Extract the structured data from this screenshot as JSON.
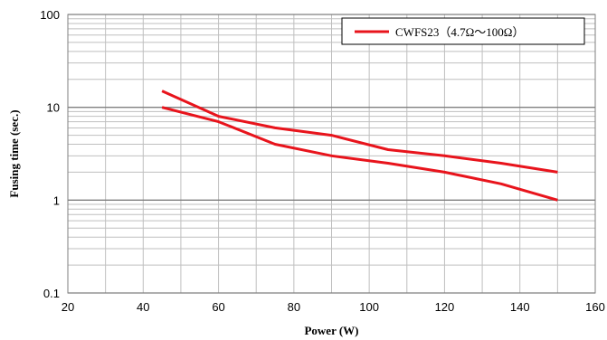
{
  "chart_data": {
    "type": "line",
    "xlabel": "Power (W)",
    "ylabel": "Fusing time (sec.)",
    "xlim": [
      20,
      160
    ],
    "ylim": [
      0.1,
      100
    ],
    "yscale": "log",
    "grid": true,
    "legend_position": "top-right",
    "x_ticks": [
      20,
      40,
      60,
      80,
      100,
      120,
      140,
      160
    ],
    "x_tick_labels": [
      "20",
      "40",
      "60",
      "80",
      "100",
      "120",
      "140",
      "160"
    ],
    "y_ticks": [
      0.1,
      1,
      10,
      100
    ],
    "y_tick_labels": [
      "0.1",
      "1",
      "10",
      "100"
    ],
    "legend": [
      {
        "label": "CWFS23（4.7Ω〜100Ω）",
        "color": "#e8141c"
      }
    ],
    "series": [
      {
        "color": "#e8141c",
        "x": [
          45,
          60,
          75,
          90,
          105,
          120,
          135,
          150
        ],
        "y": [
          15,
          8,
          6,
          5,
          3.5,
          3,
          2.5,
          2
        ]
      },
      {
        "color": "#e8141c",
        "x": [
          45,
          60,
          75,
          90,
          105,
          120,
          135,
          150
        ],
        "y": [
          10,
          7,
          4,
          3,
          2.5,
          2,
          1.5,
          1
        ]
      }
    ]
  }
}
